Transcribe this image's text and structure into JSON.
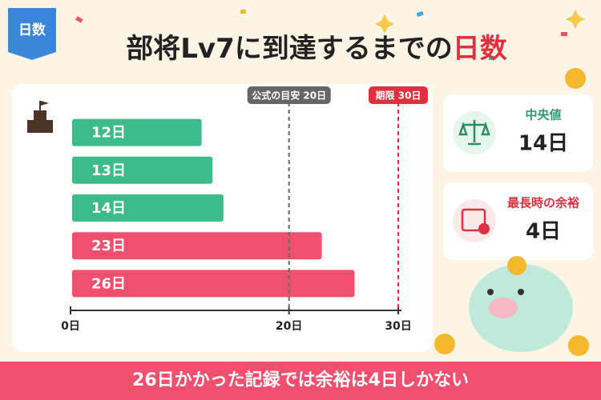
{
  "chart_data": {
    "type": "hbar",
    "badge": "日数",
    "title": "部将Lv7に到達するまでの",
    "title_highlight": "日数",
    "values": [
      12,
      13,
      14,
      23,
      26
    ],
    "value_labels": [
      "12日",
      "13日",
      "14日",
      "23日",
      "26日"
    ],
    "colors": [
      "#3dbb8c",
      "#3dbb8c",
      "#3dbb8c",
      "#f0506e",
      "#f0506e"
    ],
    "xlim": [
      0,
      30
    ],
    "xticks": [
      {
        "value": 0,
        "label": "0日"
      },
      {
        "value": 20,
        "label": "20日"
      },
      {
        "value": 30,
        "label": "30日"
      }
    ],
    "reference_lines": [
      {
        "value": 20,
        "label": "公式の目安 20日",
        "color": "#666666"
      },
      {
        "value": 30,
        "label": "期限 30日",
        "color": "#e0303f"
      }
    ],
    "cards": [
      {
        "label": "中央値",
        "value": "14日"
      },
      {
        "label": "最長時の余裕",
        "value": "4日"
      }
    ],
    "footer": "26日かかった記録では余裕は4日しかない"
  }
}
